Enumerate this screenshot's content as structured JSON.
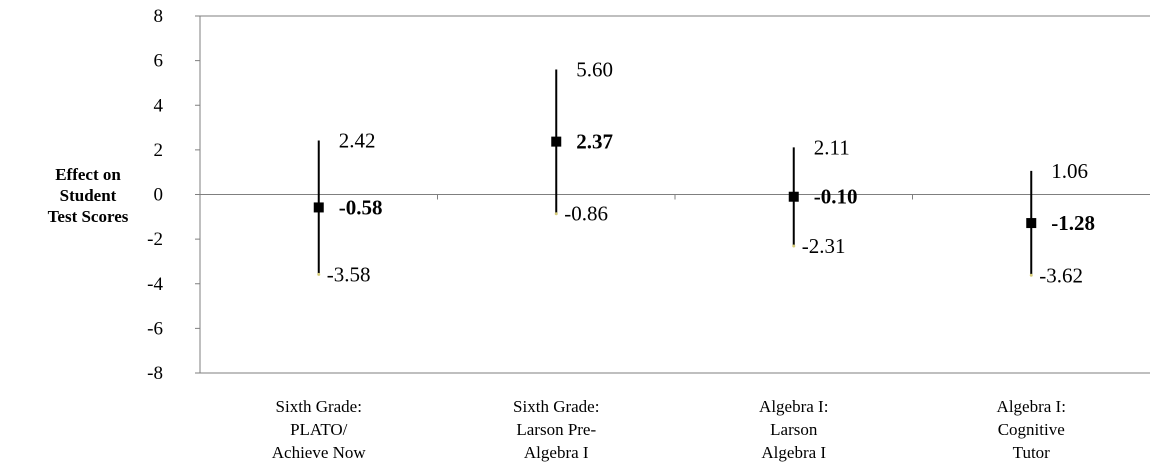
{
  "chart_data": {
    "type": "error-bar",
    "ylabel_lines": [
      "Effect on",
      "Student",
      "Test Scores"
    ],
    "ylim": [
      -8,
      8
    ],
    "yticks": [
      "8",
      "6",
      "4",
      "2",
      "0",
      "-2",
      "-4",
      "-6",
      "-8"
    ],
    "grid": false,
    "categories": [
      {
        "lines": [
          "Sixth Grade:",
          "PLATO/",
          "Achieve Now"
        ]
      },
      {
        "lines": [
          "Sixth Grade:",
          "Larson Pre-",
          "Algebra I"
        ]
      },
      {
        "lines": [
          "Algebra I:",
          "Larson",
          "Algebra I"
        ]
      },
      {
        "lines": [
          "Algebra I:",
          "Cognitive",
          "Tutor"
        ]
      }
    ],
    "estimates": [
      -0.58,
      2.37,
      -0.1,
      -1.28
    ],
    "estimate_labels": [
      "-0.58",
      "2.37",
      "-0.10",
      "-1.28"
    ],
    "upper": [
      2.42,
      5.6,
      2.11,
      1.06
    ],
    "upper_labels": [
      "2.42",
      "5.60",
      "2.11",
      "1.06"
    ],
    "lower": [
      -3.58,
      -0.86,
      -2.31,
      -3.62
    ],
    "lower_labels": [
      "-3.58",
      "-0.86",
      "-2.31",
      "-3.62"
    ]
  }
}
